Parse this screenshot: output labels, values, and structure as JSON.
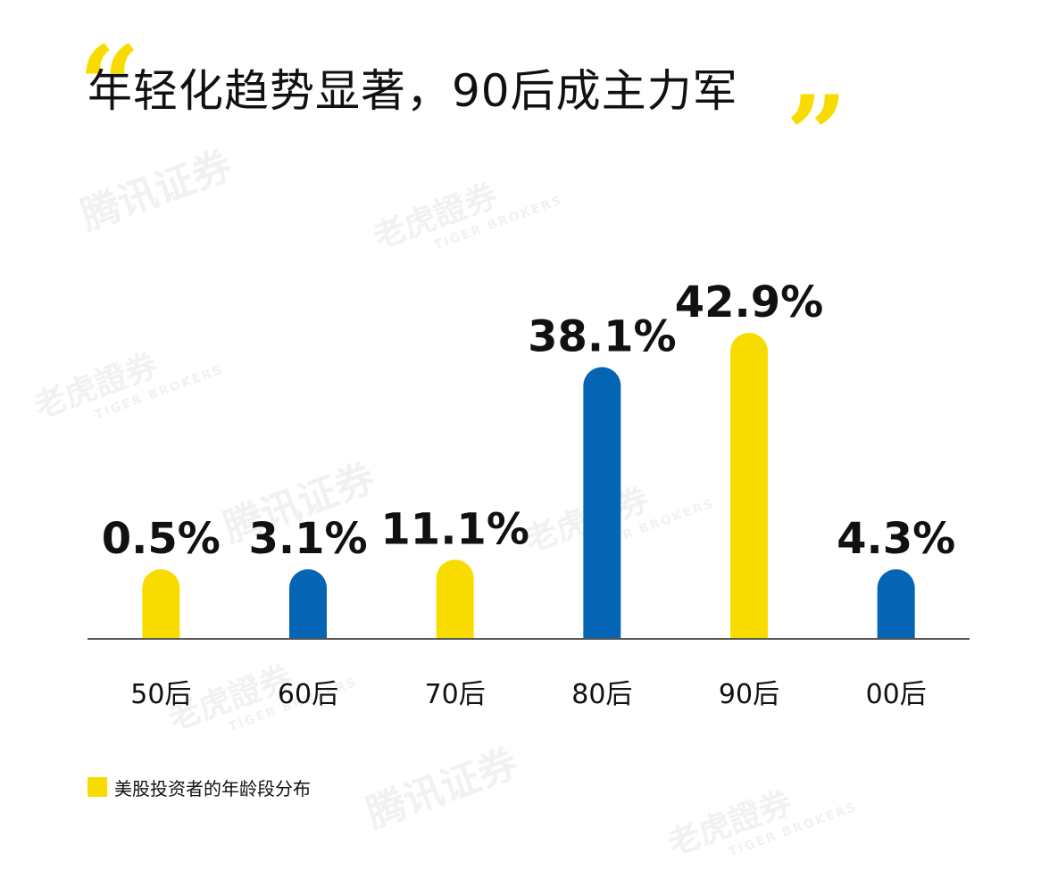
{
  "title": "年轻化趋势显著，90后成主力军",
  "quote_open": "“",
  "quote_close": "”",
  "watermarks": {
    "tencent": "腾讯证券",
    "tiger_cn": "老虎證券",
    "tiger_en": "TIGER BROKERS"
  },
  "colors": {
    "yellow": "#f8dc00",
    "blue": "#0564b4",
    "axis": "#555555"
  },
  "legend": {
    "label": "美股投资者的年龄段分布",
    "color": "#f8dc00"
  },
  "chart_data": {
    "type": "bar",
    "title": "年轻化趋势显著，90后成主力军",
    "categories": [
      "50后",
      "60后",
      "70后",
      "80后",
      "90后",
      "00后"
    ],
    "series": [
      {
        "name": "美股投资者的年龄段分布",
        "values": [
          0.5,
          3.1,
          11.1,
          38.1,
          42.9,
          4.3
        ],
        "labels": [
          "0.5%",
          "3.1%",
          "11.1%",
          "38.1%",
          "42.9%",
          "4.3%"
        ],
        "colors": [
          "#f8dc00",
          "#0564b4",
          "#f8dc00",
          "#0564b4",
          "#f8dc00",
          "#0564b4"
        ]
      }
    ],
    "xlabel": "",
    "ylabel": "",
    "unit": "%",
    "grid": false
  }
}
